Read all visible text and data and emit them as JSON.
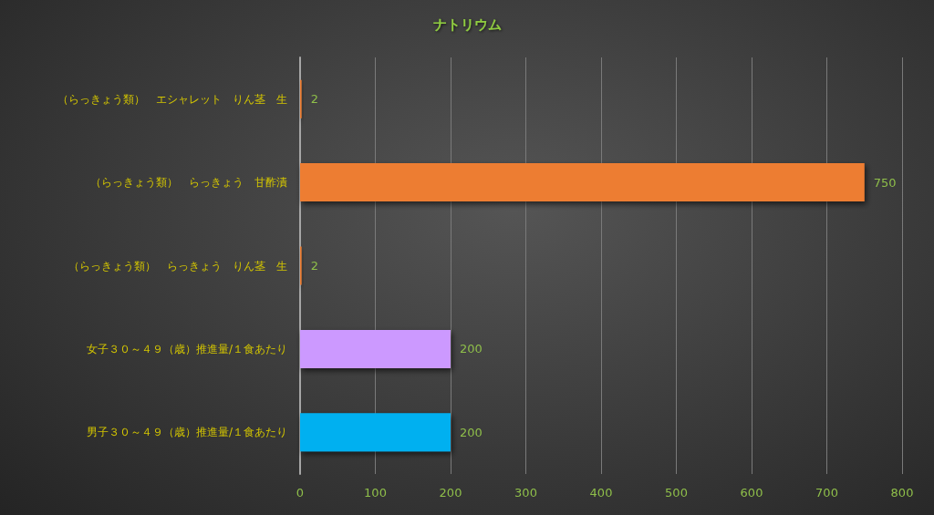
{
  "chart_data": {
    "type": "bar",
    "orientation": "horizontal",
    "title": "ナトリウム",
    "categories": [
      "（らっきょう類）　エシャレット　りん茎　生",
      "（らっきょう類）　らっきょう　甘酢漬",
      "（らっきょう類）　らっきょう　りん茎　生",
      "女子３０～４９（歳）推進量/１食あたり",
      "男子３０～４９（歳）推進量/１食あたり"
    ],
    "values": [
      2,
      750,
      2,
      200,
      200
    ],
    "colors": [
      "#ed7d31",
      "#ed7d31",
      "#ed7d31",
      "#cc99ff",
      "#00b0f0"
    ],
    "xlim": [
      0,
      800
    ],
    "xticks": [
      0,
      100,
      200,
      300,
      400,
      500,
      600,
      700,
      800
    ],
    "grid": "x",
    "data_labels": true
  }
}
